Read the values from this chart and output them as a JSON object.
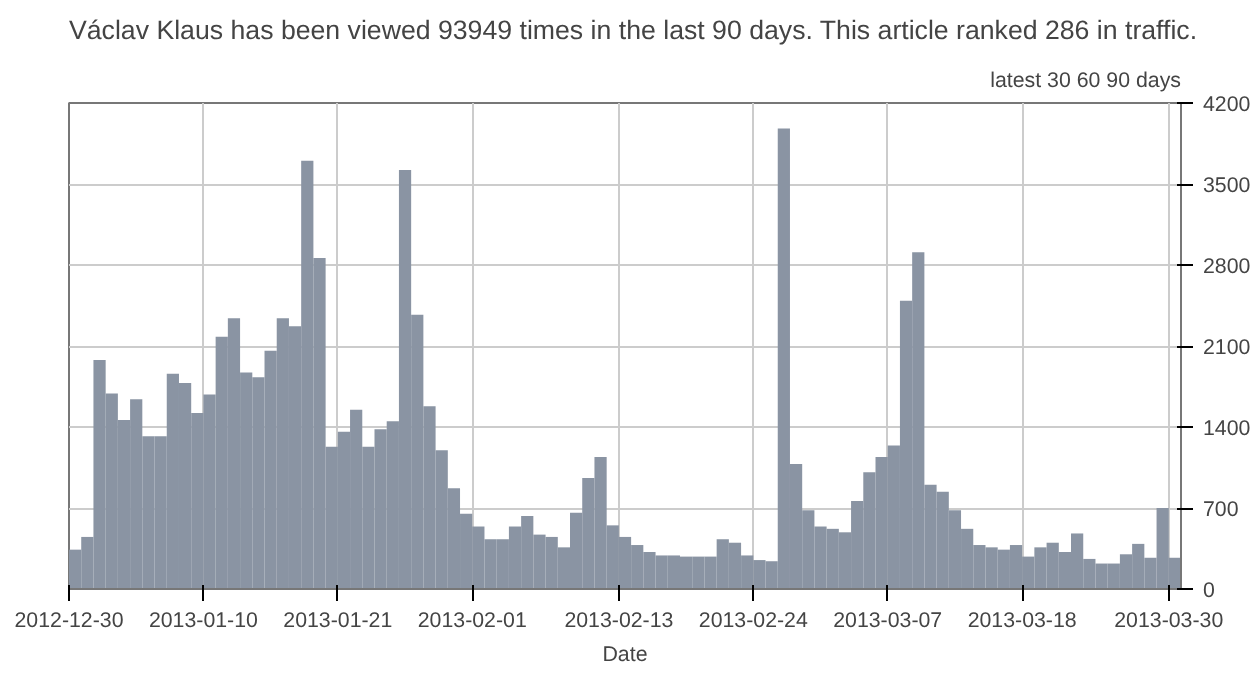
{
  "chart_data": {
    "type": "bar",
    "title": "Václav Klaus has been viewed 93949 times in the last 90 days. This article ranked 286 in traffic.",
    "annotations": [
      "latest 30 60 90 days"
    ],
    "xlabel": "Date",
    "x": [
      "2012-12-30",
      "2012-12-31",
      "2013-01-01",
      "2013-01-02",
      "2013-01-03",
      "2013-01-04",
      "2013-01-05",
      "2013-01-06",
      "2013-01-07",
      "2013-01-08",
      "2013-01-09",
      "2013-01-10",
      "2013-01-11",
      "2013-01-12",
      "2013-01-13",
      "2013-01-14",
      "2013-01-15",
      "2013-01-16",
      "2013-01-17",
      "2013-01-18",
      "2013-01-19",
      "2013-01-20",
      "2013-01-21",
      "2013-01-22",
      "2013-01-23",
      "2013-01-24",
      "2013-01-25",
      "2013-01-26",
      "2013-01-27",
      "2013-01-28",
      "2013-01-29",
      "2013-01-30",
      "2013-01-31",
      "2013-02-01",
      "2013-02-02",
      "2013-02-03",
      "2013-02-04",
      "2013-02-05",
      "2013-02-06",
      "2013-02-07",
      "2013-02-08",
      "2013-02-09",
      "2013-02-10",
      "2013-02-11",
      "2013-02-12",
      "2013-02-13",
      "2013-02-14",
      "2013-02-15",
      "2013-02-16",
      "2013-02-17",
      "2013-02-18",
      "2013-02-19",
      "2013-02-20",
      "2013-02-21",
      "2013-02-22",
      "2013-02-23",
      "2013-02-24",
      "2013-02-25",
      "2013-02-26",
      "2013-02-27",
      "2013-02-28",
      "2013-03-01",
      "2013-03-02",
      "2013-03-03",
      "2013-03-04",
      "2013-03-05",
      "2013-03-06",
      "2013-03-07",
      "2013-03-08",
      "2013-03-09",
      "2013-03-10",
      "2013-03-11",
      "2013-03-12",
      "2013-03-13",
      "2013-03-14",
      "2013-03-15",
      "2013-03-16",
      "2013-03-17",
      "2013-03-18",
      "2013-03-19",
      "2013-03-20",
      "2013-03-21",
      "2013-03-22",
      "2013-03-23",
      "2013-03-24",
      "2013-03-25",
      "2013-03-26",
      "2013-03-27",
      "2013-03-28",
      "2013-03-29",
      "2013-03-30"
    ],
    "values": [
      340,
      450,
      1980,
      1690,
      1460,
      1640,
      1320,
      1320,
      1860,
      1780,
      1520,
      1680,
      2180,
      2340,
      1870,
      1830,
      2060,
      2340,
      2270,
      3700,
      2860,
      1230,
      1360,
      1550,
      1230,
      1380,
      1450,
      3620,
      2370,
      1580,
      1200,
      870,
      650,
      540,
      430,
      430,
      540,
      630,
      470,
      450,
      360,
      660,
      960,
      1140,
      550,
      450,
      380,
      320,
      290,
      290,
      280,
      280,
      280,
      430,
      400,
      290,
      250,
      240,
      3980,
      1080,
      680,
      540,
      520,
      490,
      760,
      1010,
      1140,
      1240,
      2490,
      2910,
      900,
      840,
      680,
      520,
      380,
      360,
      340,
      380,
      280,
      360,
      400,
      320,
      480,
      260,
      220,
      220,
      300,
      390,
      270,
      700,
      270
    ],
    "color": "#8a94a3",
    "ylim": [
      0,
      4200
    ],
    "yticks": [
      0,
      700,
      1400,
      2100,
      2800,
      3500,
      4200
    ],
    "xlim": [
      "2012-12-30",
      "2013-03-31"
    ],
    "xticks": [
      "2012-12-30",
      "2013-01-10",
      "2013-01-21",
      "2013-02-01",
      "2013-02-13",
      "2013-02-24",
      "2013-03-07",
      "2013-03-18",
      "2013-03-30"
    ],
    "grid": true
  }
}
